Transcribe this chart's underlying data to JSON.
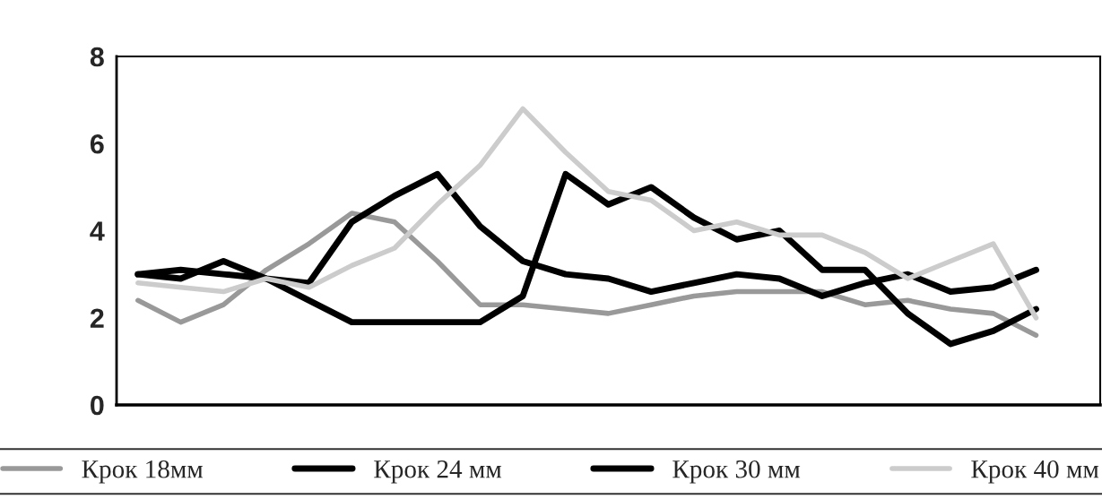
{
  "chart_data": {
    "type": "line",
    "categories": [
      null,
      null,
      null,
      null,
      null,
      null,
      null,
      null,
      null,
      null,
      null,
      null,
      null,
      null,
      null,
      null,
      null,
      null,
      null,
      null,
      null,
      null,
      null
    ],
    "series": [
      {
        "name": "Крок 18мм",
        "color": "#999999",
        "values": [
          2.4,
          1.9,
          2.3,
          3.1,
          3.7,
          4.4,
          4.2,
          3.3,
          2.3,
          2.3,
          2.2,
          2.1,
          2.3,
          2.5,
          2.6,
          2.6,
          2.6,
          2.3,
          2.4,
          2.2,
          2.1,
          1.6,
          null
        ]
      },
      {
        "name": "Крок 24 мм",
        "color": "#000000",
        "values": [
          3.0,
          2.9,
          3.3,
          2.9,
          2.8,
          4.2,
          4.8,
          5.3,
          4.1,
          3.3,
          3.0,
          2.9,
          2.6,
          2.8,
          3.0,
          2.9,
          2.5,
          2.8,
          3.0,
          2.6,
          2.7,
          3.1,
          null
        ]
      },
      {
        "name": "Крок 30 мм",
        "color": "#000000",
        "values": [
          3.0,
          3.1,
          3.0,
          2.9,
          2.4,
          1.9,
          1.9,
          1.9,
          1.9,
          2.5,
          5.3,
          4.6,
          5.0,
          4.3,
          3.8,
          4.0,
          3.1,
          3.1,
          2.1,
          1.4,
          1.7,
          2.2,
          null
        ]
      },
      {
        "name": "Крок 40 мм",
        "color": "#cccccc",
        "values": [
          2.8,
          2.7,
          2.6,
          2.9,
          2.7,
          3.2,
          3.6,
          4.6,
          5.5,
          6.8,
          5.8,
          4.9,
          4.7,
          4.0,
          4.2,
          3.9,
          3.9,
          3.5,
          2.9,
          3.3,
          3.7,
          2.0,
          null
        ]
      }
    ],
    "ylim": [
      0,
      8
    ],
    "yticks": [
      0,
      2,
      4,
      6,
      8
    ],
    "grid": false,
    "legend": "bottom",
    "marker": "none",
    "line_style": "solid"
  }
}
